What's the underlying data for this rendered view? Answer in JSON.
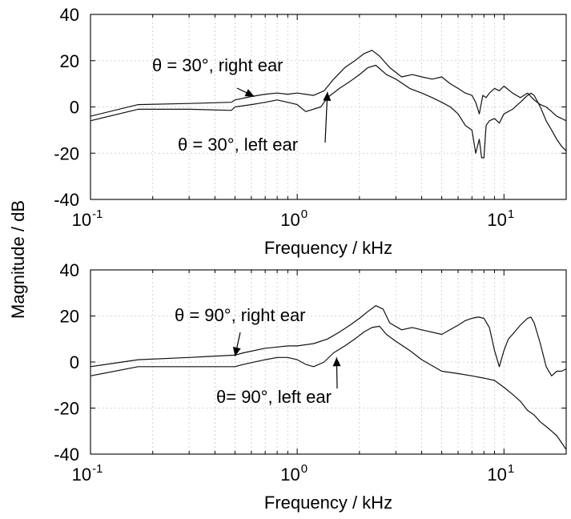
{
  "figure": {
    "ylabel": "Magnitude / dB"
  },
  "chart_data": [
    {
      "type": "line",
      "title": "",
      "xlabel": "Frequency / kHz",
      "ylabel": "Magnitude / dB",
      "xscale": "log",
      "xlim": [
        0.1,
        20
      ],
      "ylim": [
        -40,
        40
      ],
      "xticks": [
        0.1,
        1,
        10
      ],
      "xtick_labels": [
        "10",
        "10",
        "10"
      ],
      "xtick_exponents": [
        "-1",
        "0",
        "1"
      ],
      "yticks": [
        -40,
        -20,
        0,
        20,
        40
      ],
      "ytick_labels": [
        "-40",
        "-20",
        "0",
        "20",
        "40"
      ],
      "grid": true,
      "annotations": [
        {
          "text": "θ = 30°, right ear",
          "target": [
            0.62,
            4.5
          ]
        },
        {
          "text": "θ = 30°, left ear",
          "target": [
            1.4,
            6.5
          ]
        }
      ],
      "series": [
        {
          "x": [
            0.1,
            0.17,
            0.3,
            0.48,
            0.5,
            0.6,
            0.7,
            0.8,
            0.9,
            1.0,
            1.2,
            1.35,
            1.5,
            1.7,
            1.9,
            2.1,
            2.3,
            2.5,
            2.8,
            3.2,
            3.6,
            4.0,
            4.5,
            5.0,
            5.5,
            6.0,
            6.5,
            7.0,
            7.3,
            7.6,
            7.9,
            8.2,
            8.5,
            9.0,
            9.5,
            10,
            11,
            12,
            13,
            14,
            15,
            16,
            17,
            18,
            19,
            20
          ],
          "y": [
            -4,
            1,
            1.5,
            2,
            3,
            4.5,
            5.5,
            6,
            5.5,
            6,
            5,
            7,
            12,
            17,
            20,
            23,
            24.5,
            22,
            17,
            13,
            14,
            13,
            12,
            13,
            10,
            8,
            6,
            5,
            2,
            -3,
            5,
            4,
            6,
            8,
            7,
            9,
            6,
            4,
            6,
            3,
            1,
            0,
            -2,
            -4,
            -5,
            -6
          ]
        },
        {
          "x": [
            0.1,
            0.17,
            0.3,
            0.48,
            0.5,
            0.6,
            0.7,
            0.8,
            0.9,
            1.0,
            1.1,
            1.3,
            1.4,
            1.6,
            1.8,
            2.0,
            2.2,
            2.4,
            2.7,
            3.0,
            3.5,
            4.0,
            4.5,
            5.0,
            5.5,
            6.0,
            6.5,
            7.0,
            7.3,
            7.6,
            7.8,
            8.0,
            8.2,
            8.5,
            9.0,
            9.5,
            10,
            11,
            12,
            13,
            13.5,
            14,
            15,
            16,
            17,
            18,
            19,
            20
          ],
          "y": [
            -6,
            -1,
            -1,
            -1.5,
            0,
            1,
            2,
            3,
            2,
            1,
            -2,
            0,
            4,
            8,
            11,
            14,
            17,
            18,
            14,
            12,
            8,
            6,
            4,
            2,
            0,
            -3,
            -8,
            -10,
            -20,
            -14,
            -22,
            -22,
            -8,
            -6,
            -5,
            -7,
            -3,
            -1,
            2,
            5,
            6,
            5,
            0,
            -6,
            -10,
            -14,
            -17,
            -19
          ]
        }
      ]
    },
    {
      "type": "line",
      "title": "",
      "xlabel": "Frequency / kHz",
      "ylabel": "Magnitude / dB",
      "xscale": "log",
      "xlim": [
        0.1,
        20
      ],
      "ylim": [
        -40,
        40
      ],
      "xticks": [
        0.1,
        1,
        10
      ],
      "xtick_labels": [
        "10",
        "10",
        "10"
      ],
      "xtick_exponents": [
        "-1",
        "0",
        "1"
      ],
      "yticks": [
        -40,
        -20,
        0,
        20,
        40
      ],
      "ytick_labels": [
        "-40",
        "-20",
        "0",
        "20",
        "40"
      ],
      "grid": true,
      "annotations": [
        {
          "text": "θ = 90°, right ear",
          "target": [
            0.5,
            2.5
          ]
        },
        {
          "text": "θ= 90°, left ear",
          "target": [
            1.55,
            2
          ]
        }
      ],
      "series": [
        {
          "x": [
            0.1,
            0.17,
            0.3,
            0.5,
            0.55,
            0.7,
            0.8,
            0.9,
            1.0,
            1.2,
            1.4,
            1.6,
            1.8,
            2.0,
            2.2,
            2.4,
            2.6,
            2.8,
            3.2,
            3.6,
            4.0,
            5.0,
            6.0,
            6.5,
            7.0,
            7.5,
            8.0,
            8.5,
            9.0,
            9.5,
            10,
            10.5,
            11,
            12,
            13,
            13.5,
            14,
            15,
            16,
            17,
            18,
            19,
            20
          ],
          "y": [
            -2,
            1,
            2,
            3,
            4,
            6,
            6.5,
            7,
            7,
            8,
            10,
            13,
            16,
            19,
            22,
            24.5,
            23,
            17,
            14,
            15,
            14,
            12,
            16,
            18,
            19,
            19.5,
            19,
            15,
            5,
            -2,
            5,
            10,
            12,
            16,
            19,
            19.5,
            17,
            8,
            -2,
            -6,
            -4,
            -4,
            -3
          ]
        },
        {
          "x": [
            0.1,
            0.17,
            0.3,
            0.5,
            0.55,
            0.7,
            0.8,
            0.9,
            1.0,
            1.1,
            1.2,
            1.35,
            1.5,
            1.7,
            1.9,
            2.1,
            2.3,
            2.5,
            2.7,
            3.0,
            3.5,
            4.0,
            5.0,
            6.0,
            7.0,
            8.0,
            9.0,
            10,
            11,
            12,
            13,
            14,
            15,
            16,
            17,
            18,
            19,
            20
          ],
          "y": [
            -6,
            -2,
            -2,
            -2,
            -1,
            1,
            2,
            2,
            1,
            -1,
            -2,
            0,
            4,
            7,
            10,
            13,
            15,
            15.5,
            12,
            9,
            5,
            1,
            -4,
            -5,
            -6,
            -7,
            -8,
            -11,
            -14,
            -17,
            -21,
            -23,
            -26,
            -28,
            -30,
            -32,
            -35,
            -38
          ]
        }
      ]
    }
  ]
}
